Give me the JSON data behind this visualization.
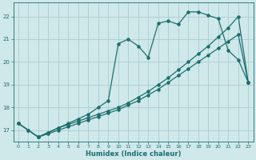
{
  "xlabel": "Humidex (Indice chaleur)",
  "xlim": [
    -0.5,
    23.5
  ],
  "ylim": [
    16.5,
    22.6
  ],
  "yticks": [
    17,
    18,
    19,
    20,
    21,
    22
  ],
  "xticks": [
    0,
    1,
    2,
    3,
    4,
    5,
    6,
    7,
    8,
    9,
    10,
    11,
    12,
    13,
    14,
    15,
    16,
    17,
    18,
    19,
    20,
    21,
    22,
    23
  ],
  "background_color": "#cfe8ea",
  "grid_color": "#aacdd2",
  "line_color": "#1e6e6e",
  "line1_x": [
    0,
    1,
    2,
    3,
    4,
    5,
    6,
    7,
    8,
    9,
    10,
    11,
    12,
    13,
    14,
    15,
    16,
    17,
    18,
    19,
    20,
    21,
    22,
    23
  ],
  "line1_y": [
    17.3,
    17.0,
    16.7,
    16.85,
    17.0,
    17.15,
    17.3,
    17.45,
    17.6,
    17.75,
    17.9,
    18.1,
    18.3,
    18.55,
    18.8,
    19.1,
    19.4,
    19.7,
    20.0,
    20.3,
    20.6,
    20.9,
    21.2,
    19.1
  ],
  "line2_x": [
    0,
    1,
    2,
    3,
    4,
    5,
    6,
    7,
    8,
    9,
    10,
    11,
    12,
    13,
    14,
    15,
    16,
    17,
    18,
    19,
    20,
    21,
    22,
    23
  ],
  "line2_y": [
    17.3,
    17.0,
    16.7,
    16.9,
    17.1,
    17.3,
    17.5,
    17.7,
    18.0,
    18.3,
    20.8,
    21.0,
    20.7,
    20.2,
    21.7,
    21.8,
    21.65,
    22.2,
    22.2,
    22.05,
    21.9,
    20.5,
    20.1,
    19.1
  ],
  "line3_x": [
    0,
    2,
    3,
    4,
    5,
    6,
    7,
    8,
    9,
    10,
    11,
    12,
    13,
    14,
    15,
    16,
    17,
    18,
    19,
    20,
    21,
    22,
    23
  ],
  "line3_y": [
    17.3,
    16.7,
    16.9,
    17.1,
    17.25,
    17.4,
    17.55,
    17.7,
    17.85,
    18.0,
    18.2,
    18.45,
    18.7,
    19.0,
    19.3,
    19.65,
    20.0,
    20.35,
    20.7,
    21.1,
    21.5,
    22.0,
    19.1
  ]
}
